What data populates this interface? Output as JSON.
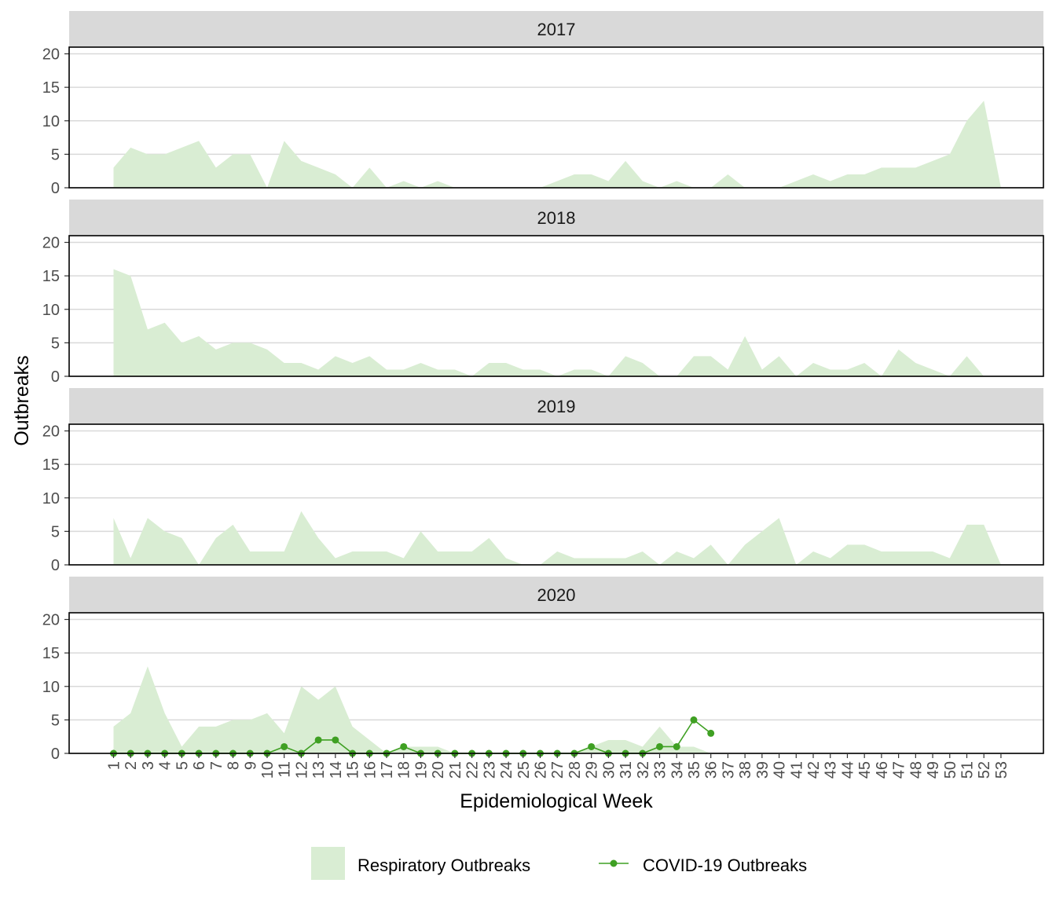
{
  "chart_data": {
    "type": "area",
    "xlabel": "Epidemiological Week",
    "ylabel": "Outbreaks",
    "ylim": [
      0,
      21
    ],
    "yticks": [
      0,
      5,
      10,
      15,
      20
    ],
    "x_categories": [
      "1",
      "2",
      "3",
      "4",
      "5",
      "6",
      "7",
      "8",
      "9",
      "10",
      "11",
      "12",
      "13",
      "14",
      "15",
      "16",
      "17",
      "18",
      "19",
      "20",
      "21",
      "22",
      "23",
      "24",
      "25",
      "26",
      "27",
      "28",
      "29",
      "30",
      "31",
      "32",
      "33",
      "34",
      "35",
      "36",
      "37",
      "38",
      "39",
      "40",
      "41",
      "42",
      "43",
      "44",
      "45",
      "46",
      "47",
      "48",
      "49",
      "50",
      "51",
      "52",
      "53"
    ],
    "grid": "horizontal",
    "legend_position": "bottom",
    "colors": {
      "respiratory_fill": "#d9edd3",
      "covid_line": "#3fa023",
      "strip_bg": "#d9d9d9",
      "grid": "#d9d9d9"
    },
    "legend": [
      {
        "label": "Respiratory Outbreaks",
        "kind": "area"
      },
      {
        "label": "COVID-19 Outbreaks",
        "kind": "line-point"
      }
    ],
    "panels": [
      {
        "label": "2017",
        "respiratory": [
          3,
          6,
          5,
          5,
          6,
          7,
          3,
          5,
          5,
          0,
          7,
          4,
          3,
          2,
          0,
          3,
          0,
          1,
          0,
          1,
          0,
          0,
          0,
          0,
          0,
          0,
          1,
          2,
          2,
          1,
          4,
          1,
          0,
          1,
          0,
          0,
          2,
          0,
          0,
          0,
          1,
          2,
          1,
          2,
          2,
          3,
          3,
          3,
          4,
          5,
          10,
          13,
          0
        ],
        "covid": []
      },
      {
        "label": "2018",
        "respiratory": [
          16,
          15,
          7,
          8,
          5,
          6,
          4,
          5,
          5,
          4,
          2,
          2,
          1,
          3,
          2,
          3,
          1,
          1,
          2,
          1,
          1,
          0,
          2,
          2,
          1,
          1,
          0,
          1,
          1,
          0,
          3,
          2,
          0,
          0,
          3,
          3,
          1,
          6,
          1,
          3,
          0,
          2,
          1,
          1,
          2,
          0,
          4,
          2,
          1,
          0,
          3,
          0,
          0
        ],
        "covid": []
      },
      {
        "label": "2019",
        "respiratory": [
          7,
          1,
          7,
          5,
          4,
          0,
          4,
          6,
          2,
          2,
          2,
          8,
          4,
          1,
          2,
          2,
          2,
          1,
          5,
          2,
          2,
          2,
          4,
          1,
          0,
          0,
          2,
          1,
          1,
          1,
          1,
          2,
          0,
          2,
          1,
          3,
          0,
          3,
          5,
          7,
          0,
          2,
          1,
          3,
          3,
          2,
          2,
          2,
          2,
          1,
          6,
          6,
          0
        ],
        "covid": []
      },
      {
        "label": "2020",
        "respiratory": [
          4,
          6,
          13,
          6,
          1,
          4,
          4,
          5,
          5,
          6,
          3,
          10,
          8,
          10,
          4,
          2,
          0,
          1,
          1,
          1,
          0,
          0,
          0,
          0,
          0,
          0,
          0,
          0,
          1,
          2,
          2,
          1,
          4,
          1,
          1,
          0
        ],
        "covid": [
          0,
          0,
          0,
          0,
          0,
          0,
          0,
          0,
          0,
          0,
          1,
          0,
          2,
          2,
          0,
          0,
          0,
          1,
          0,
          0,
          0,
          0,
          0,
          0,
          0,
          0,
          0,
          0,
          1,
          0,
          0,
          0,
          1,
          1,
          5,
          3
        ]
      }
    ]
  }
}
